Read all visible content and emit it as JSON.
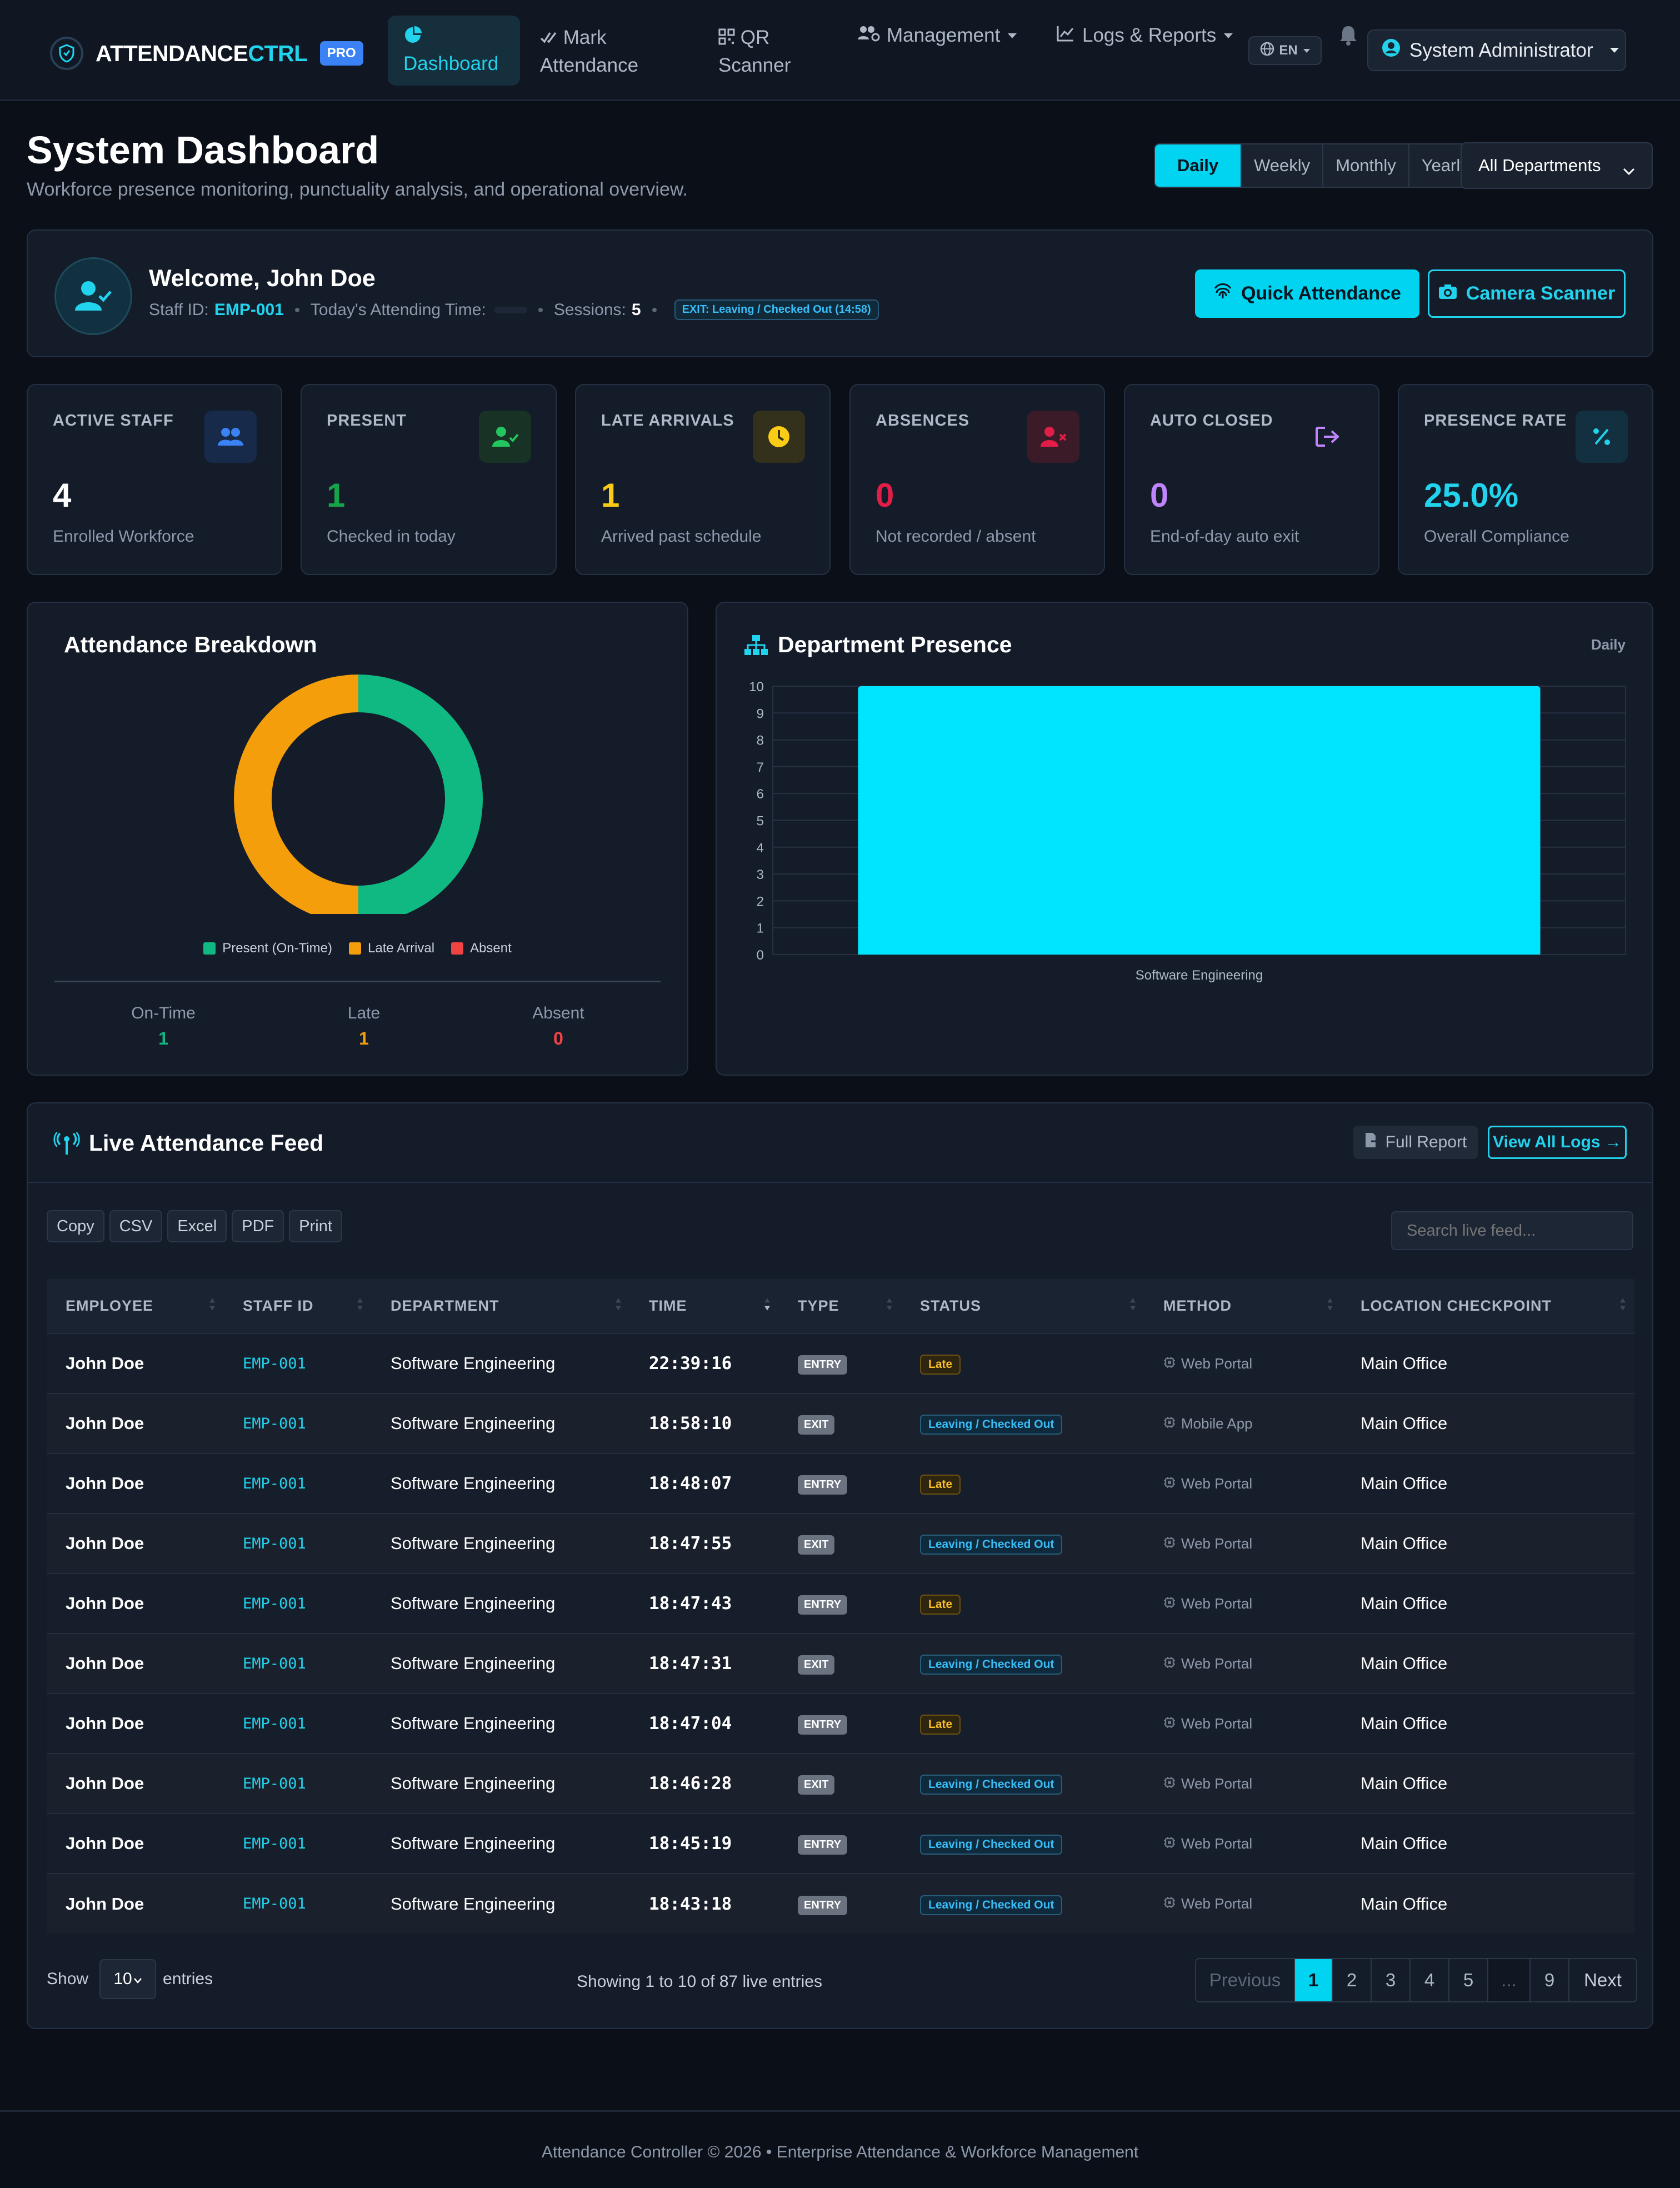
{
  "nav": {
    "brand_main": "ATTENDANCE",
    "brand_accent": "CTRL",
    "pro_badge": "PRO",
    "items": [
      {
        "line1": "Dashboard",
        "line2": "",
        "icon": "pie-chart-icon"
      },
      {
        "line1": "Mark",
        "line2": "Attendance",
        "icon": "double-check-icon"
      },
      {
        "line1": "QR",
        "line2": "Scanner",
        "icon": "qr-code-icon"
      },
      {
        "line1": "Management",
        "line2": "",
        "icon": "users-cog-icon"
      },
      {
        "line1": "Logs & Reports",
        "line2": "",
        "icon": "line-chart-icon"
      }
    ],
    "language": "EN",
    "user": "System Administrator"
  },
  "header": {
    "title": "System Dashboard",
    "subtitle": "Workforce presence monitoring, punctuality analysis, and operational overview.",
    "periods": [
      "Daily",
      "Weekly",
      "Monthly",
      "Yearly"
    ],
    "active_period": "Daily",
    "department": "All Departments"
  },
  "welcome": {
    "title": "Welcome, John Doe",
    "staff_id_label": "Staff ID:",
    "staff_id": "EMP-001",
    "attending_label": "Today's Attending Time:",
    "sessions_label": "Sessions:",
    "sessions": "5",
    "exit_badge": "EXIT: Leaving / Checked Out (14:58)",
    "quick_button": "Quick Attendance",
    "camera_button": "Camera Scanner"
  },
  "stats": [
    {
      "label": "ACTIVE STAFF",
      "value": "4",
      "sub": "Enrolled Workforce",
      "color": "#ffffff",
      "icon": "users-icon",
      "icon_color": "#3b82f6",
      "icon_bg": "#182a49"
    },
    {
      "label": "PRESENT",
      "value": "1",
      "sub": "Checked in today",
      "color": "#16a34a",
      "icon": "user-check-icon",
      "icon_color": "#22c55e",
      "icon_bg": "#183325"
    },
    {
      "label": "LATE ARRIVALS",
      "value": "1",
      "sub": "Arrived past schedule",
      "color": "#facc15",
      "icon": "clock-icon",
      "icon_color": "#facc15",
      "icon_bg": "#33301c"
    },
    {
      "label": "ABSENCES",
      "value": "0",
      "sub": "Not recorded / absent",
      "color": "#e11d48",
      "icon": "user-x-icon",
      "icon_color": "#e11d48",
      "icon_bg": "#3a1b27"
    },
    {
      "label": "AUTO CLOSED",
      "value": "0",
      "sub": "End-of-day auto exit",
      "color": "#c084fc",
      "icon": "sign-out-icon",
      "icon_color": "#c084fc",
      "icon_bg": "#141c2a"
    },
    {
      "label": "PRESENCE RATE",
      "value": "25.0%",
      "sub": "Overall Compliance",
      "color": "#22d3ee",
      "icon": "percent-icon",
      "icon_color": "#22d3ee",
      "icon_bg": "#133040"
    }
  ],
  "breakdown": {
    "title": "Attendance Breakdown",
    "legend": [
      "Present (On-Time)",
      "Late Arrival",
      "Absent"
    ],
    "colors": [
      "#10b981",
      "#f59e0b",
      "#ef4444"
    ],
    "summary": [
      {
        "label": "On-Time",
        "value": "1",
        "color": "#10b981"
      },
      {
        "label": "Late",
        "value": "1",
        "color": "#f59e0b"
      },
      {
        "label": "Absent",
        "value": "0",
        "color": "#ef4444"
      }
    ]
  },
  "dept_presence": {
    "title": "Department Presence",
    "period": "Daily"
  },
  "chart_data": [
    {
      "type": "pie",
      "categories": [
        "Present (On-Time)",
        "Late Arrival",
        "Absent"
      ],
      "values": [
        1,
        1,
        0
      ],
      "colors": [
        "#10b981",
        "#f59e0b",
        "#ef4444"
      ],
      "legend": "bottom"
    },
    {
      "type": "bar",
      "categories": [
        "Software Engineering"
      ],
      "values": [
        10
      ],
      "ylim": [
        0,
        10
      ],
      "yticks": [
        0,
        1,
        2,
        3,
        4,
        5,
        6,
        7,
        8,
        9,
        10
      ],
      "color": "#00e5ff",
      "grid": true
    }
  ],
  "feed": {
    "title": "Live Attendance Feed",
    "full_report": "Full Report",
    "view_all": "View All Logs →",
    "export_buttons": [
      "Copy",
      "CSV",
      "Excel",
      "PDF",
      "Print"
    ],
    "search_placeholder": "Search live feed...",
    "columns": [
      "EMPLOYEE",
      "STAFF ID",
      "DEPARTMENT",
      "TIME",
      "TYPE",
      "STATUS",
      "METHOD",
      "LOCATION CHECKPOINT"
    ],
    "rows": [
      {
        "employee": "John Doe",
        "staff_id": "EMP-001",
        "department": "Software Engineering",
        "time": "22:39:16",
        "type": "ENTRY",
        "status": "Late",
        "method": "Web Portal",
        "location": "Main Office"
      },
      {
        "employee": "John Doe",
        "staff_id": "EMP-001",
        "department": "Software Engineering",
        "time": "18:58:10",
        "type": "EXIT",
        "status": "Leaving / Checked Out",
        "method": "Mobile App",
        "location": "Main Office"
      },
      {
        "employee": "John Doe",
        "staff_id": "EMP-001",
        "department": "Software Engineering",
        "time": "18:48:07",
        "type": "ENTRY",
        "status": "Late",
        "method": "Web Portal",
        "location": "Main Office"
      },
      {
        "employee": "John Doe",
        "staff_id": "EMP-001",
        "department": "Software Engineering",
        "time": "18:47:55",
        "type": "EXIT",
        "status": "Leaving / Checked Out",
        "method": "Web Portal",
        "location": "Main Office"
      },
      {
        "employee": "John Doe",
        "staff_id": "EMP-001",
        "department": "Software Engineering",
        "time": "18:47:43",
        "type": "ENTRY",
        "status": "Late",
        "method": "Web Portal",
        "location": "Main Office"
      },
      {
        "employee": "John Doe",
        "staff_id": "EMP-001",
        "department": "Software Engineering",
        "time": "18:47:31",
        "type": "EXIT",
        "status": "Leaving / Checked Out",
        "method": "Web Portal",
        "location": "Main Office"
      },
      {
        "employee": "John Doe",
        "staff_id": "EMP-001",
        "department": "Software Engineering",
        "time": "18:47:04",
        "type": "ENTRY",
        "status": "Late",
        "method": "Web Portal",
        "location": "Main Office"
      },
      {
        "employee": "John Doe",
        "staff_id": "EMP-001",
        "department": "Software Engineering",
        "time": "18:46:28",
        "type": "EXIT",
        "status": "Leaving / Checked Out",
        "method": "Web Portal",
        "location": "Main Office"
      },
      {
        "employee": "John Doe",
        "staff_id": "EMP-001",
        "department": "Software Engineering",
        "time": "18:45:19",
        "type": "ENTRY",
        "status": "Leaving / Checked Out",
        "method": "Web Portal",
        "location": "Main Office"
      },
      {
        "employee": "John Doe",
        "staff_id": "EMP-001",
        "department": "Software Engineering",
        "time": "18:43:18",
        "type": "ENTRY",
        "status": "Leaving / Checked Out",
        "method": "Web Portal",
        "location": "Main Office"
      }
    ],
    "show_label": "Show",
    "page_size": "10",
    "entries_label": "entries",
    "info": "Showing 1 to 10 of 87 live entries",
    "pagination": [
      "Previous",
      "1",
      "2",
      "3",
      "4",
      "5",
      "...",
      "9",
      "Next"
    ],
    "active_page": "1"
  },
  "footer": "Attendance Controller © 2026 • Enterprise Attendance & Workforce Management"
}
